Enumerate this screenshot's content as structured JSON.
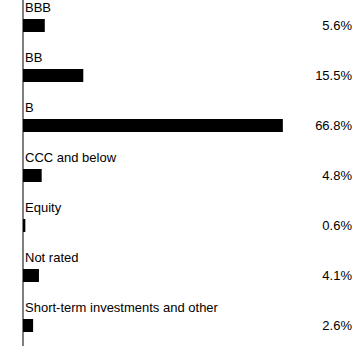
{
  "chart_data": {
    "type": "bar",
    "orientation": "horizontal",
    "categories": [
      "BBB",
      "BB",
      "B",
      "CCC and below",
      "Equity",
      "Not rated",
      "Short-term investments and other"
    ],
    "values": [
      5.6,
      15.5,
      66.8,
      4.8,
      0.6,
      4.1,
      2.6
    ],
    "value_labels": [
      "5.6%",
      "15.5%",
      "66.8%",
      "4.8%",
      "0.6%",
      "4.1%",
      "2.6%"
    ],
    "color": "#000000",
    "xlim": [
      0,
      80
    ],
    "tick_labels": false,
    "data_labels": true,
    "grid": false
  }
}
